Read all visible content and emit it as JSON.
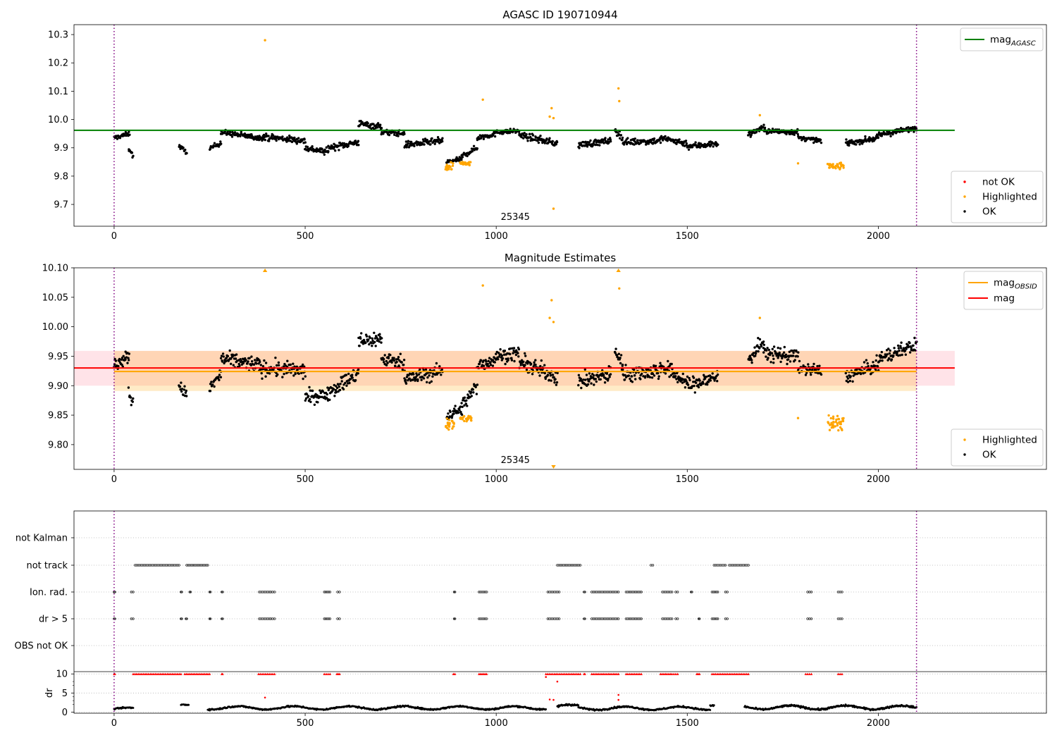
{
  "chart_data": [
    {
      "type": "scatter",
      "title": "AGASC ID 190710944",
      "xlim": [
        -105,
        2440
      ],
      "ylim": [
        9.623,
        10.335
      ],
      "xticks": [
        0,
        500,
        1000,
        1500,
        2000
      ],
      "yticks": [
        9.7,
        9.8,
        9.9,
        10.0,
        10.1,
        10.2,
        10.3
      ],
      "ytick_labels": [
        "9.7",
        "9.8",
        "9.9",
        "10.0",
        "10.1",
        "10.2",
        "10.3"
      ],
      "obs_lines": [
        0,
        2100
      ],
      "obs_label": {
        "text": "25345",
        "x": 1050
      },
      "hlines": [
        {
          "name": "mag_AGASC",
          "y": 9.962,
          "x0": -105,
          "x1": 2200,
          "color": "#008000"
        }
      ],
      "legend_lines": [
        {
          "label_main": "mag",
          "label_sub": "AGASC",
          "color": "#008000"
        }
      ],
      "legend_points": [
        {
          "label": "not OK",
          "color": "#ff0000"
        },
        {
          "label": "Highlighted",
          "color": "#ffa500"
        },
        {
          "label": "OK",
          "color": "#000000"
        }
      ],
      "highlighted_points": [
        [
          395,
          10.28
        ],
        [
          965,
          10.07
        ],
        [
          1145,
          10.04
        ],
        [
          1140,
          10.01
        ],
        [
          1150,
          10.005
        ],
        [
          1150,
          9.685
        ],
        [
          1320,
          10.11
        ],
        [
          1322,
          10.065
        ],
        [
          1690,
          10.015
        ],
        [
          1790,
          9.845
        ]
      ],
      "highlighted_segments": [
        [
          865,
          890,
          9.835,
          0.012
        ],
        [
          905,
          935,
          9.845,
          0.006
        ],
        [
          1865,
          1910,
          9.838,
          0.012
        ]
      ],
      "ok_segments": [
        [
          0,
          40,
          9.935,
          9.95,
          0.008
        ],
        [
          38,
          50,
          9.9,
          9.87,
          0.01
        ],
        [
          170,
          190,
          9.905,
          9.885,
          0.008
        ],
        [
          250,
          280,
          9.895,
          9.92,
          0.01
        ],
        [
          280,
          380,
          9.955,
          9.935,
          0.01
        ],
        [
          380,
          500,
          9.94,
          9.925,
          0.012
        ],
        [
          500,
          560,
          9.9,
          9.885,
          0.012
        ],
        [
          560,
          640,
          9.9,
          9.92,
          0.012
        ],
        [
          640,
          700,
          9.985,
          9.975,
          0.012
        ],
        [
          700,
          760,
          9.955,
          9.95,
          0.01
        ],
        [
          760,
          860,
          9.91,
          9.925,
          0.012
        ],
        [
          870,
          910,
          9.85,
          9.86,
          0.008
        ],
        [
          910,
          950,
          9.87,
          9.9,
          0.01
        ],
        [
          950,
          1000,
          9.935,
          9.95,
          0.01
        ],
        [
          1000,
          1060,
          9.955,
          9.96,
          0.008
        ],
        [
          1060,
          1160,
          9.945,
          9.915,
          0.012
        ],
        [
          1215,
          1300,
          9.91,
          9.925,
          0.012
        ],
        [
          1310,
          1330,
          9.96,
          9.94,
          0.012
        ],
        [
          1330,
          1430,
          9.92,
          9.925,
          0.012
        ],
        [
          1430,
          1500,
          9.935,
          9.915,
          0.012
        ],
        [
          1500,
          1580,
          9.905,
          9.915,
          0.012
        ],
        [
          1660,
          1700,
          9.945,
          9.975,
          0.01
        ],
        [
          1700,
          1790,
          9.96,
          9.955,
          0.01
        ],
        [
          1790,
          1850,
          9.935,
          9.925,
          0.008
        ],
        [
          1915,
          2000,
          9.915,
          9.935,
          0.01
        ],
        [
          2000,
          2100,
          9.945,
          9.97,
          0.01
        ]
      ]
    },
    {
      "type": "scatter",
      "title": "Magnitude Estimates",
      "xlim": [
        -105,
        2440
      ],
      "ylim": [
        9.758,
        10.1
      ],
      "xticks": [
        0,
        500,
        1000,
        1500,
        2000
      ],
      "yticks": [
        9.8,
        9.85,
        9.9,
        9.95,
        10.0,
        10.05,
        10.1
      ],
      "ytick_labels": [
        "9.80",
        "9.85",
        "9.90",
        "9.95",
        "10.00",
        "10.05",
        "10.10"
      ],
      "obs_lines": [
        0,
        2100
      ],
      "obs_label": {
        "text": "25345",
        "x": 1050
      },
      "bands": [
        {
          "x0": -105,
          "x1": 2200,
          "y0": 9.9,
          "y1": 9.959,
          "color": "#ffc0cb",
          "opacity": 0.45
        },
        {
          "x0": 0,
          "x1": 2100,
          "y0": 9.891,
          "y1": 9.959,
          "color": "#ffa500",
          "opacity": 0.22
        }
      ],
      "hlines": [
        {
          "name": "mag_OBSID",
          "y": 9.924,
          "x0": 0,
          "x1": 2100,
          "color": "#ffa500"
        },
        {
          "name": "mag",
          "y": 9.93,
          "x0": -105,
          "x1": 2200,
          "color": "#ff0000"
        }
      ],
      "legend_lines": [
        {
          "label_main": "mag",
          "label_sub": "OBSID",
          "color": "#ffa500"
        },
        {
          "label_main": "mag",
          "label_sub": "",
          "color": "#ff0000"
        }
      ],
      "legend_points": [
        {
          "label": "Highlighted",
          "color": "#ffa500"
        },
        {
          "label": "OK",
          "color": "#000000"
        }
      ],
      "highlighted_points": [
        [
          965,
          10.07
        ],
        [
          1145,
          10.045
        ],
        [
          1140,
          10.015
        ],
        [
          1150,
          10.008
        ],
        [
          1322,
          10.065
        ],
        [
          1690,
          10.015
        ],
        [
          1790,
          9.845
        ]
      ],
      "highlighted_segments": [
        [
          865,
          890,
          9.835,
          0.012
        ],
        [
          905,
          935,
          9.845,
          0.006
        ],
        [
          1865,
          1910,
          9.838,
          0.012
        ]
      ],
      "clipped_markers": [
        [
          395,
          "up"
        ],
        [
          1320,
          "up"
        ],
        [
          1150,
          "down"
        ]
      ],
      "ok_segments": [
        [
          0,
          40,
          9.935,
          9.95,
          0.012
        ],
        [
          38,
          50,
          9.89,
          9.87,
          0.012
        ],
        [
          170,
          190,
          9.9,
          9.885,
          0.01
        ],
        [
          250,
          280,
          9.895,
          9.92,
          0.012
        ],
        [
          280,
          380,
          9.945,
          9.935,
          0.014
        ],
        [
          380,
          500,
          9.93,
          9.925,
          0.014
        ],
        [
          500,
          560,
          9.88,
          9.885,
          0.012
        ],
        [
          560,
          640,
          9.89,
          9.92,
          0.014
        ],
        [
          640,
          700,
          9.975,
          9.98,
          0.014
        ],
        [
          700,
          760,
          9.945,
          9.94,
          0.012
        ],
        [
          760,
          860,
          9.91,
          9.925,
          0.014
        ],
        [
          870,
          910,
          9.85,
          9.86,
          0.01
        ],
        [
          910,
          950,
          9.865,
          9.9,
          0.012
        ],
        [
          950,
          1000,
          9.935,
          9.945,
          0.012
        ],
        [
          1000,
          1060,
          9.95,
          9.955,
          0.012
        ],
        [
          1060,
          1160,
          9.94,
          9.915,
          0.014
        ],
        [
          1215,
          1300,
          9.905,
          9.92,
          0.014
        ],
        [
          1310,
          1330,
          9.96,
          9.94,
          0.014
        ],
        [
          1330,
          1430,
          9.92,
          9.925,
          0.014
        ],
        [
          1430,
          1500,
          9.935,
          9.905,
          0.014
        ],
        [
          1500,
          1580,
          9.9,
          9.915,
          0.014
        ],
        [
          1660,
          1700,
          9.945,
          9.975,
          0.014
        ],
        [
          1700,
          1790,
          9.955,
          9.95,
          0.014
        ],
        [
          1790,
          1850,
          9.93,
          9.925,
          0.01
        ],
        [
          1915,
          2000,
          9.915,
          9.935,
          0.012
        ],
        [
          2000,
          2100,
          9.945,
          9.97,
          0.012
        ]
      ]
    },
    {
      "type": "scatter",
      "xlim": [
        -105,
        2440
      ],
      "obs_lines": [
        0,
        2100
      ],
      "flag_labels": [
        "not Kalman",
        "not track",
        "Ion. rad.",
        "dr > 5",
        "OBS not OK"
      ],
      "flags": {
        "not Kalman": [],
        "not track": [
          [
            55,
            170
          ],
          [
            190,
            245
          ],
          [
            1160,
            1220
          ],
          [
            1405,
            1410
          ],
          [
            1570,
            1600
          ],
          [
            1610,
            1660
          ]
        ],
        "Ion. rad.": [
          [
            0,
            2
          ],
          [
            45,
            50
          ],
          [
            175,
            177
          ],
          [
            198,
            200
          ],
          [
            250,
            252
          ],
          [
            282,
            284
          ],
          [
            380,
            410
          ],
          [
            410,
            420
          ],
          [
            550,
            565
          ],
          [
            585,
            590
          ],
          [
            890,
            892
          ],
          [
            955,
            975
          ],
          [
            1135,
            1165
          ],
          [
            1230,
            1232
          ],
          [
            1250,
            1320
          ],
          [
            1340,
            1380
          ],
          [
            1435,
            1460
          ],
          [
            1470,
            1475
          ],
          [
            1510,
            1512
          ],
          [
            1565,
            1580
          ],
          [
            1600,
            1605
          ],
          [
            1815,
            1825
          ],
          [
            1895,
            1905
          ]
        ],
        "dr > 5": [
          [
            0,
            2
          ],
          [
            45,
            50
          ],
          [
            175,
            177
          ],
          [
            188,
            190
          ],
          [
            250,
            252
          ],
          [
            282,
            284
          ],
          [
            380,
            410
          ],
          [
            410,
            420
          ],
          [
            550,
            565
          ],
          [
            585,
            590
          ],
          [
            890,
            892
          ],
          [
            955,
            975
          ],
          [
            1135,
            1165
          ],
          [
            1230,
            1232
          ],
          [
            1250,
            1320
          ],
          [
            1340,
            1380
          ],
          [
            1435,
            1460
          ],
          [
            1470,
            1475
          ],
          [
            1530,
            1532
          ],
          [
            1565,
            1580
          ],
          [
            1600,
            1605
          ],
          [
            1815,
            1825
          ],
          [
            1895,
            1905
          ]
        ],
        "OBS not OK": []
      },
      "dr": {
        "ylabel": "dr",
        "yticks": [
          0,
          5,
          10
        ],
        "ylim": [
          -0.3,
          10.6
        ],
        "threshold": 10,
        "red_segments": [
          [
            0,
            2
          ],
          [
            50,
            175
          ],
          [
            185,
            250
          ],
          [
            282,
            284
          ],
          [
            378,
            420
          ],
          [
            550,
            565
          ],
          [
            583,
            590
          ],
          [
            888,
            892
          ],
          [
            955,
            975
          ],
          [
            1130,
            1220
          ],
          [
            1230,
            1232
          ],
          [
            1250,
            1320
          ],
          [
            1340,
            1380
          ],
          [
            1430,
            1460
          ],
          [
            1465,
            1475
          ],
          [
            1525,
            1532
          ],
          [
            1565,
            1660
          ],
          [
            1810,
            1825
          ],
          [
            1895,
            1905
          ]
        ],
        "red_points": [
          [
            1130,
            9.2
          ],
          [
            1160,
            8
          ],
          [
            1140,
            3.3
          ],
          [
            1150,
            3.2
          ],
          [
            1320,
            4.5
          ],
          [
            1320,
            3.2
          ],
          [
            395,
            3.8
          ]
        ],
        "black_segments": [
          [
            0,
            50,
            0.8,
            0.5
          ],
          [
            175,
            195,
            1.6,
            0.5
          ],
          [
            245,
            1130,
            1.1,
            0.6
          ],
          [
            1160,
            1215,
            1.4,
            0.8
          ],
          [
            1215,
            1560,
            1.0,
            0.6
          ],
          [
            1560,
            1570,
            2.0,
            0.5
          ],
          [
            1650,
            2100,
            1.2,
            0.7
          ]
        ]
      }
    }
  ]
}
